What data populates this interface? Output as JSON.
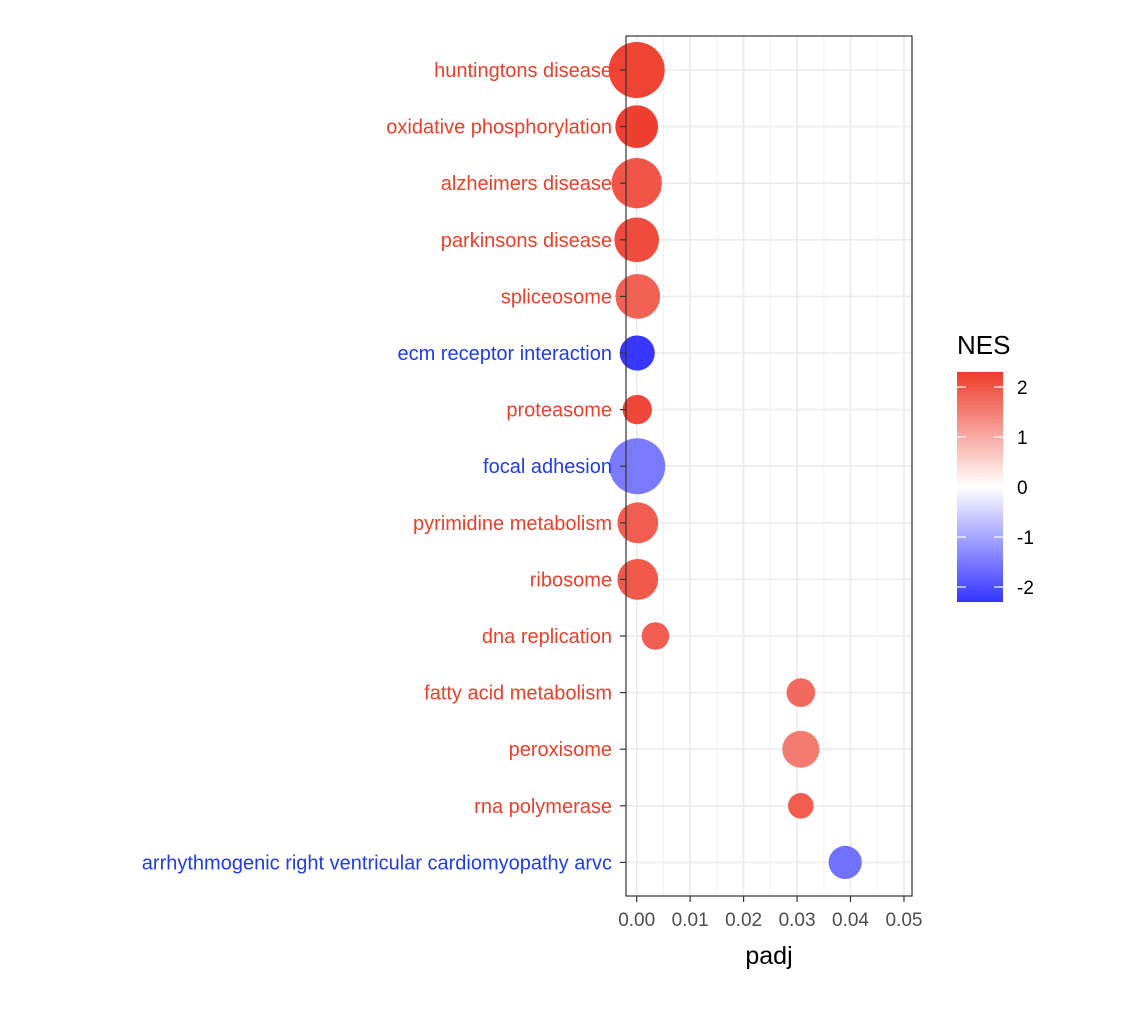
{
  "chart_data": {
    "type": "scatter",
    "title": "",
    "xlabel": "padj",
    "ylabel": "",
    "xlim": [
      -0.002,
      0.0515
    ],
    "x_ticks": [
      0.0,
      0.01,
      0.02,
      0.03,
      0.04,
      0.05
    ],
    "x_tick_labels": [
      "0.00",
      "0.01",
      "0.02",
      "0.03",
      "0.04",
      "0.05"
    ],
    "grid": true,
    "legend": {
      "title": "NES",
      "position": "right",
      "range": [
        -2.3,
        2.3
      ],
      "ticks": [
        2,
        1,
        0,
        -1,
        -2
      ],
      "tick_labels": [
        "2",
        "1",
        "0",
        "-1",
        "-2"
      ],
      "low_color": "#3333ff",
      "mid_color": "#ffffff",
      "high_color": "#ee3b2b"
    },
    "points": [
      {
        "term": "huntingtons disease",
        "padj": 0.0,
        "NES": 2.2,
        "size": 10.0
      },
      {
        "term": "oxidative phosphorylation",
        "padj": 0.0,
        "NES": 2.25,
        "size": 6.5
      },
      {
        "term": "alzheimers disease",
        "padj": 0.0,
        "NES": 2.0,
        "size": 8.5
      },
      {
        "term": "parkinsons disease",
        "padj": 0.0,
        "NES": 2.1,
        "size": 7.0
      },
      {
        "term": "spliceosome",
        "padj": 0.0002,
        "NES": 1.85,
        "size": 7.0
      },
      {
        "term": "ecm receptor interaction",
        "padj": 0.0001,
        "NES": -2.25,
        "size": 4.5
      },
      {
        "term": "proteasome",
        "padj": 0.0001,
        "NES": 2.15,
        "size": 3.0
      },
      {
        "term": "focal adhesion",
        "padj": 0.0001,
        "NES": -1.5,
        "size": 10.0
      },
      {
        "term": "pyrimidine metabolism",
        "padj": 0.0002,
        "NES": 1.9,
        "size": 6.0
      },
      {
        "term": "ribosome",
        "padj": 0.0002,
        "NES": 1.95,
        "size": 6.0
      },
      {
        "term": "dna replication",
        "padj": 0.0035,
        "NES": 1.9,
        "size": 2.5
      },
      {
        "term": "fatty acid metabolism",
        "padj": 0.0307,
        "NES": 1.75,
        "size": 2.8
      },
      {
        "term": "peroxisome",
        "padj": 0.0307,
        "NES": 1.55,
        "size": 5.0
      },
      {
        "term": "rna polymerase",
        "padj": 0.0307,
        "NES": 1.9,
        "size": 2.0
      },
      {
        "term": "arrhythmogenic right ventricular cardiomyopathy arvc",
        "padj": 0.039,
        "NES": -1.6,
        "size": 4.0
      }
    ]
  }
}
